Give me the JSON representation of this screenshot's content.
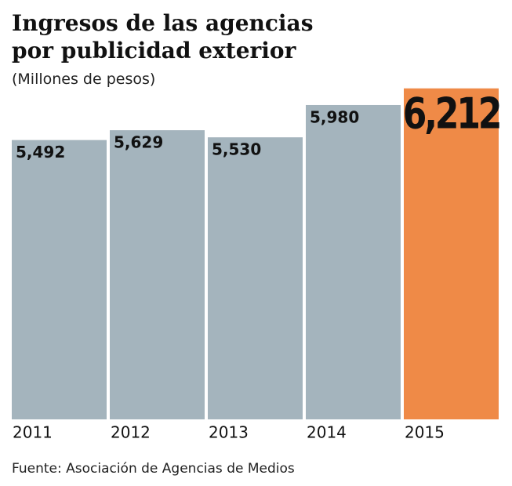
{
  "chart_data": {
    "type": "bar",
    "title": "Ingresos de las agencias por publicidad exterior",
    "subtitle": "(Millones de pesos)",
    "source": "Fuente: Asociación de Agencias de Medios",
    "categories": [
      "2011",
      "2012",
      "2013",
      "2014",
      "2015"
    ],
    "values": [
      5492,
      5629,
      5530,
      5980,
      6212
    ],
    "value_labels": [
      "5,492",
      "5,629",
      "5,530",
      "5,980",
      "6,212"
    ],
    "colors": [
      "#a4b4bd",
      "#a4b4bd",
      "#a4b4bd",
      "#a4b4bd",
      "#ef8a47"
    ],
    "ylim": [
      1600,
      6220
    ]
  }
}
